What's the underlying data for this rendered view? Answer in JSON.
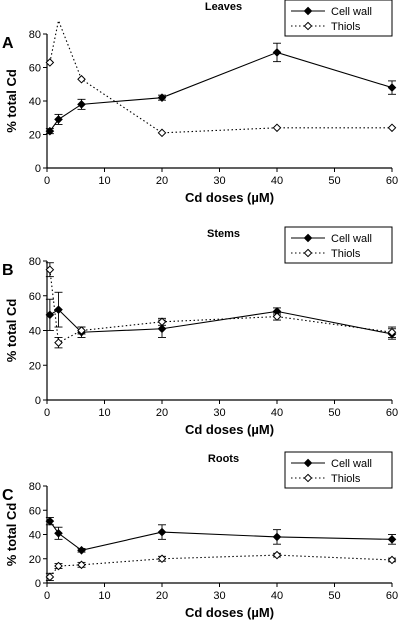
{
  "chart_data": [
    {
      "type": "line",
      "panel_label": "A",
      "title": "Leaves",
      "xlabel": "Cd doses (µM)",
      "ylabel": "% total Cd",
      "xlim": [
        0,
        60
      ],
      "ylim": [
        0,
        80
      ],
      "xticks": [
        0,
        10,
        20,
        30,
        40,
        50,
        60
      ],
      "yticks": [
        0,
        20,
        40,
        60,
        80
      ],
      "legend_position": "top-right",
      "series": [
        {
          "name": "Cell wall",
          "style": "solid",
          "marker": "filled-diamond",
          "x": [
            0.5,
            2,
            6,
            20,
            40,
            60
          ],
          "y": [
            22,
            29,
            38,
            42,
            69,
            48
          ],
          "err": [
            1.5,
            3,
            3,
            1.5,
            5.5,
            4
          ]
        },
        {
          "name": "Thiols",
          "style": "dotted",
          "marker": "open-diamond",
          "x": [
            0.5,
            2,
            6,
            20,
            40,
            60
          ],
          "y": [
            63,
            88,
            53,
            21,
            24,
            24
          ],
          "err": [
            0,
            0,
            0,
            0,
            0,
            0
          ]
        }
      ]
    },
    {
      "type": "line",
      "panel_label": "B",
      "title": "Stems",
      "xlabel": "Cd doses (µM)",
      "ylabel": "% total Cd",
      "xlim": [
        0,
        60
      ],
      "ylim": [
        0,
        80
      ],
      "xticks": [
        0,
        10,
        20,
        30,
        40,
        50,
        60
      ],
      "yticks": [
        0,
        20,
        40,
        60,
        80
      ],
      "legend_position": "top-right",
      "series": [
        {
          "name": "Cell wall",
          "style": "solid",
          "marker": "filled-diamond",
          "x": [
            0.5,
            2,
            6,
            20,
            40,
            60
          ],
          "y": [
            49,
            52,
            39,
            41,
            51,
            38
          ],
          "err": [
            9,
            10,
            3,
            5,
            2,
            3
          ]
        },
        {
          "name": "Thiols",
          "style": "dotted",
          "marker": "open-diamond",
          "x": [
            0.5,
            2,
            6,
            20,
            40,
            60
          ],
          "y": [
            75,
            33,
            40,
            45,
            48,
            39
          ],
          "err": [
            4,
            3,
            2,
            2,
            2,
            3
          ]
        }
      ]
    },
    {
      "type": "line",
      "panel_label": "C",
      "title": "Roots",
      "xlabel": "Cd doses (µM)",
      "ylabel": "% total Cd",
      "xlim": [
        0,
        60
      ],
      "ylim": [
        0,
        80
      ],
      "xticks": [
        0,
        10,
        20,
        30,
        40,
        50,
        60
      ],
      "yticks": [
        0,
        20,
        40,
        60,
        80
      ],
      "legend_position": "top-right",
      "series": [
        {
          "name": "Cell wall",
          "style": "solid",
          "marker": "filled-diamond",
          "x": [
            0.5,
            2,
            6,
            20,
            40,
            60
          ],
          "y": [
            51,
            41,
            27,
            42,
            38,
            36
          ],
          "err": [
            3,
            5,
            1.5,
            6,
            6,
            4
          ]
        },
        {
          "name": "Thiols",
          "style": "dotted",
          "marker": "open-diamond",
          "x": [
            0.5,
            2,
            6,
            20,
            40,
            60
          ],
          "y": [
            5,
            14,
            15,
            20,
            23,
            19
          ],
          "err": [
            3,
            2,
            2,
            2,
            1.5,
            1.5
          ]
        }
      ]
    }
  ]
}
